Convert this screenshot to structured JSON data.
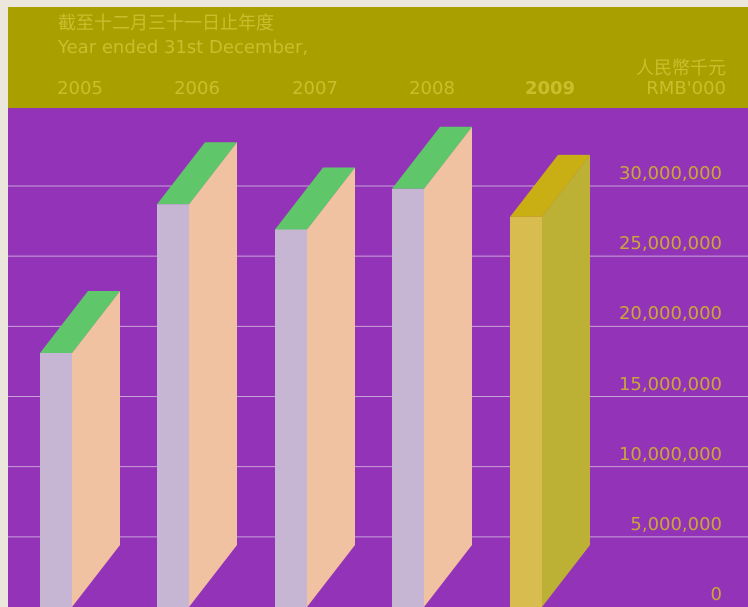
{
  "header": {
    "title_zh": "截至十二月三十一日止年度",
    "title_en": "Year ended 31st December,",
    "unit_zh": "人民幣千元",
    "unit_en": "RMB'000"
  },
  "colors": {
    "background": "#ece7dc",
    "header_band": "#a9a000",
    "plot_bg": "#9334b8",
    "header_text": "#c9be2c",
    "tick_text": "#c9a63a",
    "gridline": "#c8a0d8",
    "bar_front": "#c6b6d4",
    "bar_side": "#f0c2a2",
    "bar_top": "#5fc769",
    "highlight_front": "#d9bc50",
    "highlight_side": "#bdb135",
    "highlight_top": "#c9ae14"
  },
  "chart_data": {
    "type": "bar",
    "categories": [
      "2005",
      "2006",
      "2007",
      "2008",
      "2009"
    ],
    "values": [
      18100000,
      28700000,
      26900000,
      29800000,
      27800000
    ],
    "highlight_category": "2009",
    "ylim": [
      0,
      30000000
    ],
    "yticks": [
      0,
      5000000,
      10000000,
      15000000,
      20000000,
      25000000,
      30000000
    ],
    "ytick_labels": [
      "0",
      "5,000,000",
      "10,000,000",
      "15,000,000",
      "20,000,000",
      "25,000,000",
      "30,000,000"
    ],
    "grid": true,
    "axis_position": "right",
    "style": "3d"
  }
}
